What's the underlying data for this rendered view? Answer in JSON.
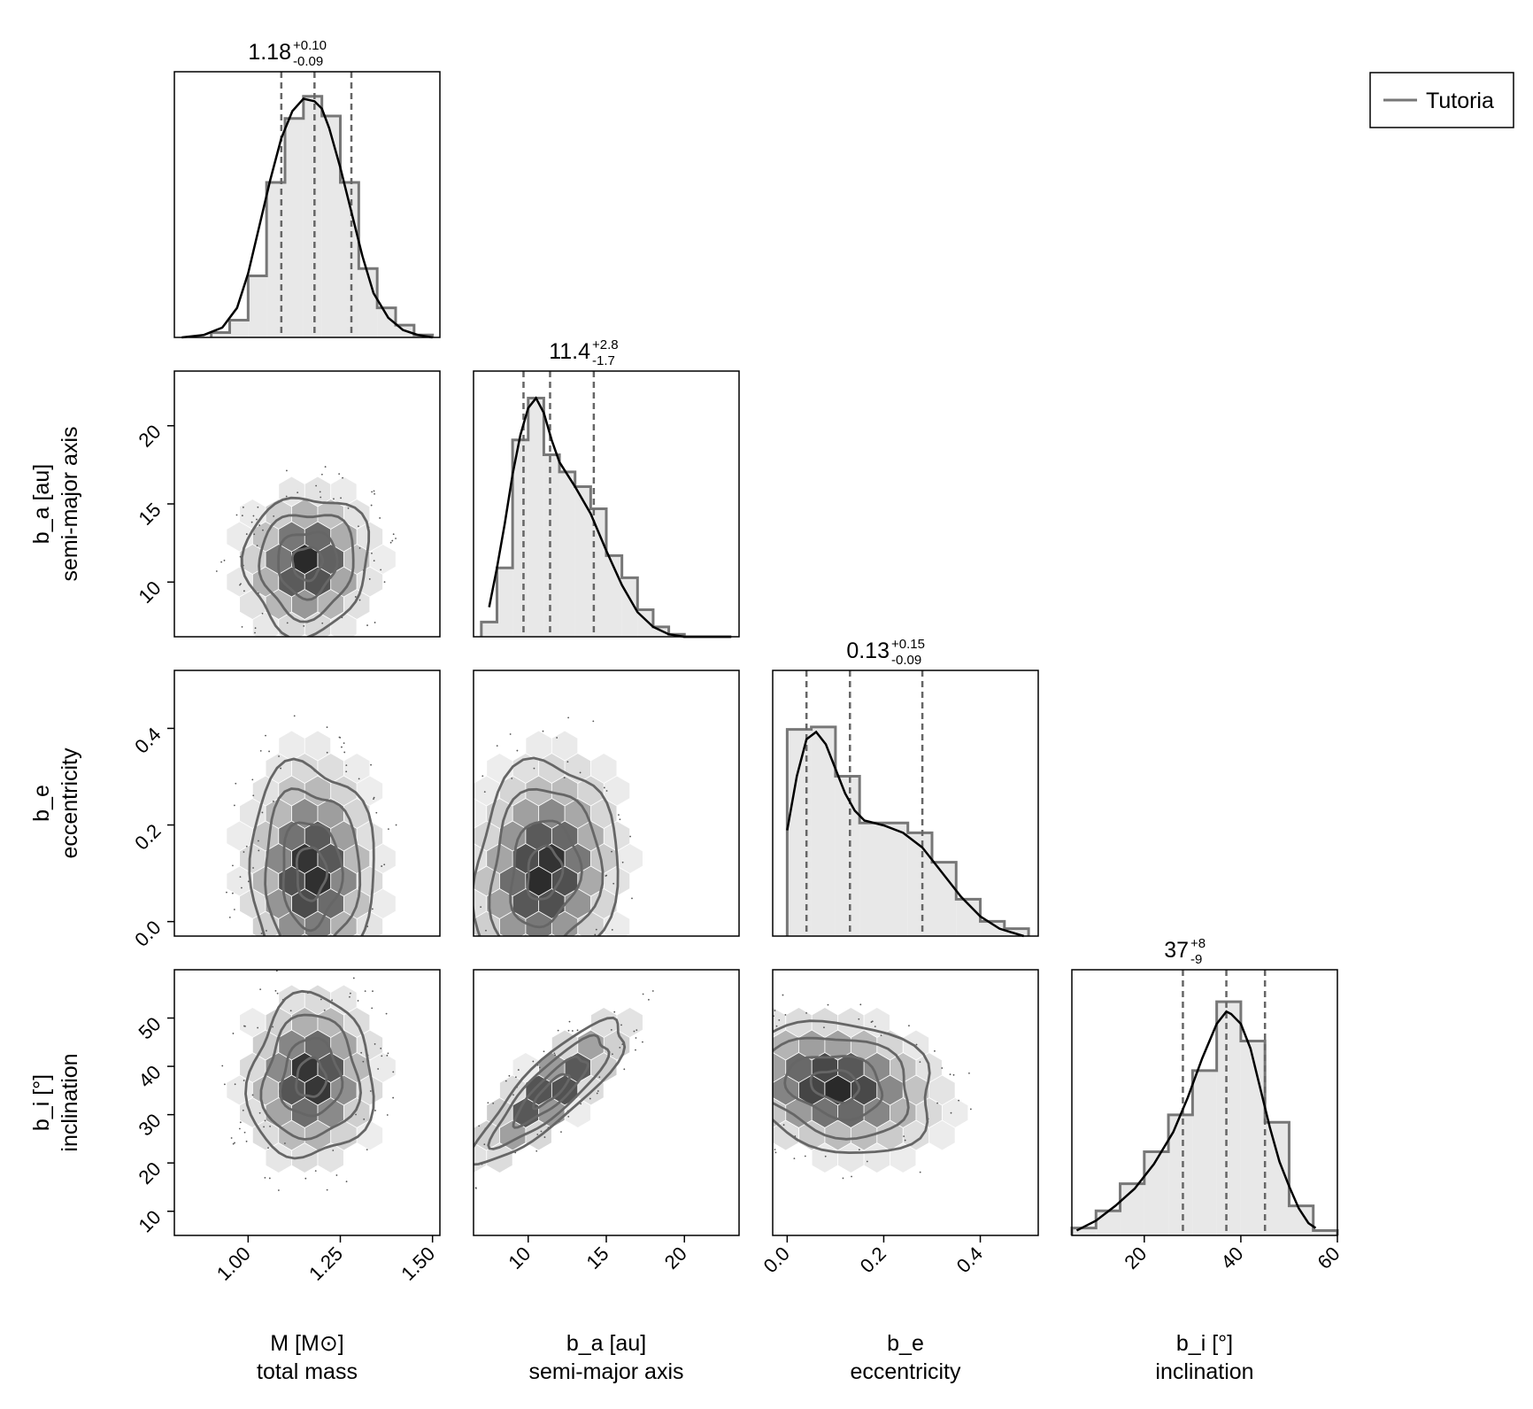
{
  "chart_data": {
    "type": "corner",
    "legend": {
      "label": "Tutoria",
      "position": "top-right"
    },
    "parameters": [
      {
        "name": "M [M⊙]",
        "description": "total mass",
        "range": [
          0.8,
          1.52
        ],
        "ticks": [
          "1.00",
          "1.25",
          "1.50"
        ],
        "tick_values": [
          1.0,
          1.25,
          1.5
        ]
      },
      {
        "name": "b_a [au]",
        "description": "semi-major axis",
        "range": [
          6.5,
          23.5
        ],
        "ticks": [
          "10",
          "15",
          "20"
        ],
        "tick_values": [
          10,
          15,
          20
        ]
      },
      {
        "name": "b_e",
        "description": "eccentricity",
        "range": [
          -0.03,
          0.52
        ],
        "ticks": [
          "0.0",
          "0.2",
          "0.4"
        ],
        "tick_values": [
          0.0,
          0.2,
          0.4
        ]
      },
      {
        "name": "b_i [°]",
        "description": "inclination",
        "range": [
          5,
          60
        ],
        "ticks": [
          "20",
          "40",
          "60"
        ],
        "tick_values": [
          20,
          40,
          60
        ]
      }
    ],
    "row_ticks": [
      {
        "labels": [
          "10",
          "15",
          "20"
        ],
        "values": [
          10,
          15,
          20
        ]
      },
      {
        "labels": [
          "0.0",
          "0.2",
          "0.4"
        ],
        "values": [
          0.0,
          0.2,
          0.4
        ]
      },
      {
        "labels": [
          "10",
          "20",
          "30",
          "40",
          "50"
        ],
        "values": [
          10,
          20,
          30,
          40,
          50
        ]
      }
    ],
    "marginals": [
      {
        "median": "1.18",
        "plus": "+0.10",
        "minus": "-0.09",
        "quantiles": [
          1.09,
          1.18,
          1.28
        ],
        "hist_edges": [
          0.9,
          0.95,
          1.0,
          1.05,
          1.1,
          1.15,
          1.2,
          1.25,
          1.3,
          1.35,
          1.4,
          1.45,
          1.5
        ],
        "hist_values": [
          0.02,
          0.07,
          0.25,
          0.63,
          0.89,
          0.98,
          0.9,
          0.63,
          0.28,
          0.12,
          0.05,
          0.01
        ],
        "kde_x": [
          0.82,
          0.88,
          0.93,
          0.97,
          1.0,
          1.03,
          1.06,
          1.09,
          1.12,
          1.15,
          1.18,
          1.2,
          1.22,
          1.25,
          1.28,
          1.31,
          1.34,
          1.38,
          1.42,
          1.46,
          1.5
        ],
        "kde_y": [
          0.0,
          0.01,
          0.04,
          0.12,
          0.26,
          0.45,
          0.64,
          0.81,
          0.92,
          0.97,
          0.96,
          0.93,
          0.85,
          0.69,
          0.51,
          0.33,
          0.18,
          0.08,
          0.03,
          0.01,
          0.0
        ]
      },
      {
        "median": "11.4",
        "plus": "+2.8",
        "minus": "-1.7",
        "quantiles": [
          9.7,
          11.4,
          14.2
        ],
        "hist_edges": [
          7.0,
          8.0,
          9.0,
          10.0,
          11.0,
          12.0,
          13.0,
          14.0,
          15.0,
          16.0,
          17.0,
          18.0,
          19.0,
          20.0,
          21.0,
          22.0,
          23.0
        ],
        "hist_values": [
          0.06,
          0.28,
          0.8,
          0.97,
          0.74,
          0.67,
          0.61,
          0.52,
          0.33,
          0.24,
          0.11,
          0.04,
          0.01,
          0.0,
          0.0,
          0.0
        ],
        "kde_x": [
          7.5,
          8.0,
          8.5,
          9.0,
          9.5,
          10.0,
          10.5,
          11.0,
          11.5,
          12.0,
          12.5,
          13.0,
          14.0,
          15.0,
          16.0,
          17.0,
          18.0,
          19.0,
          20.0,
          22.0,
          23.0
        ],
        "kde_y": [
          0.12,
          0.28,
          0.46,
          0.66,
          0.82,
          0.93,
          0.97,
          0.91,
          0.8,
          0.71,
          0.66,
          0.61,
          0.5,
          0.35,
          0.21,
          0.1,
          0.04,
          0.01,
          0.0,
          0.0,
          0.0
        ]
      },
      {
        "median": "0.13",
        "plus": "+0.15",
        "minus": "-0.09",
        "quantiles": [
          0.04,
          0.13,
          0.28
        ],
        "hist_edges": [
          0.0,
          0.05,
          0.1,
          0.15,
          0.2,
          0.25,
          0.3,
          0.35,
          0.4,
          0.45,
          0.5
        ],
        "hist_values": [
          0.84,
          0.85,
          0.65,
          0.46,
          0.46,
          0.42,
          0.3,
          0.15,
          0.06,
          0.03
        ],
        "kde_x": [
          0.0,
          0.02,
          0.04,
          0.06,
          0.08,
          0.1,
          0.12,
          0.14,
          0.16,
          0.2,
          0.24,
          0.28,
          0.32,
          0.36,
          0.4,
          0.44,
          0.49
        ],
        "kde_y": [
          0.43,
          0.65,
          0.8,
          0.83,
          0.78,
          0.68,
          0.58,
          0.51,
          0.47,
          0.45,
          0.42,
          0.36,
          0.26,
          0.16,
          0.08,
          0.03,
          0.0
        ]
      },
      {
        "median": "37",
        "plus": "+8",
        "minus": "-9",
        "quantiles": [
          28,
          37,
          45
        ],
        "hist_edges": [
          5,
          10,
          15,
          20,
          25,
          30,
          35,
          40,
          45,
          50,
          55,
          60
        ],
        "hist_values": [
          0.03,
          0.1,
          0.21,
          0.34,
          0.49,
          0.67,
          0.95,
          0.79,
          0.46,
          0.12,
          0.02
        ],
        "kde_x": [
          6,
          10,
          14,
          18,
          22,
          26,
          29,
          32,
          35,
          37,
          38,
          40,
          42,
          44,
          46,
          48,
          50,
          52,
          54,
          55.5
        ],
        "kde_y": [
          0.02,
          0.06,
          0.12,
          0.19,
          0.29,
          0.42,
          0.56,
          0.72,
          0.86,
          0.91,
          0.9,
          0.86,
          0.76,
          0.6,
          0.44,
          0.3,
          0.2,
          0.11,
          0.05,
          0.03
        ]
      }
    ],
    "pairs": [
      {
        "row": 1,
        "col": 0,
        "center": [
          1.16,
          11.2
        ],
        "sigma": [
          0.08,
          2.1
        ],
        "rho": 0.05,
        "tail_y": 4.0
      },
      {
        "row": 2,
        "col": 0,
        "center": [
          1.17,
          0.1
        ],
        "sigma": [
          0.08,
          0.11
        ],
        "rho": 0.0,
        "tail_y": 0.0
      },
      {
        "row": 2,
        "col": 1,
        "center": [
          11.0,
          0.1
        ],
        "sigma": [
          2.2,
          0.11
        ],
        "rho": 0.15,
        "tail_y": 0.0
      },
      {
        "row": 3,
        "col": 0,
        "center": [
          1.17,
          37.5
        ],
        "sigma": [
          0.08,
          8.0
        ],
        "rho": 0.05,
        "tail_y": 0.0
      },
      {
        "row": 3,
        "col": 1,
        "center": [
          11.5,
          35.0
        ],
        "sigma": [
          2.3,
          7.0
        ],
        "rho": 0.85,
        "tail_y": 0.0
      },
      {
        "row": 3,
        "col": 2,
        "center": [
          0.1,
          36.0
        ],
        "sigma": [
          0.1,
          6.5
        ],
        "rho": -0.2,
        "tail_y": 0.0
      }
    ]
  }
}
